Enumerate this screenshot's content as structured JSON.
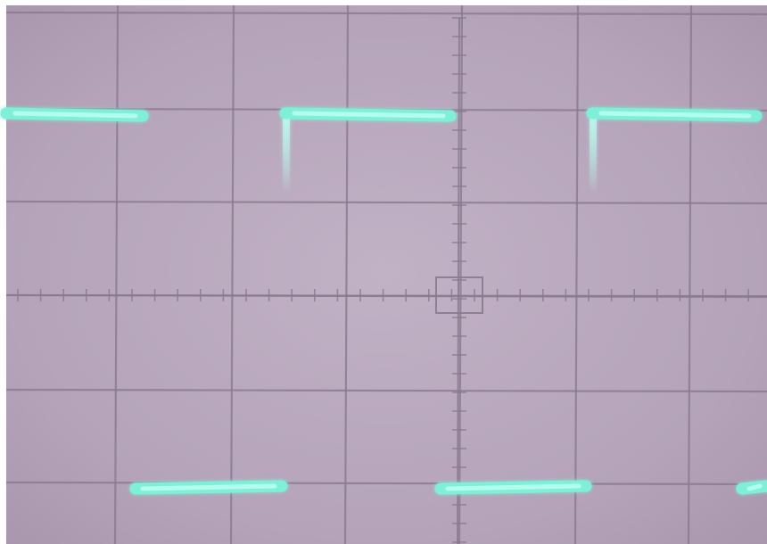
{
  "scene": {
    "subject": "oscilloscope-screen-photo",
    "screen_color": "#b9a8be",
    "grid_color": "#8a7a8f",
    "trace_color": "#7ff0d8",
    "trace_glow_color": "#b9fff0",
    "grid": {
      "major_columns": 7,
      "major_rows": 6,
      "minor_subdivisions": 5
    },
    "waveform": {
      "type": "square",
      "duty_cycle": 0.45
    }
  }
}
